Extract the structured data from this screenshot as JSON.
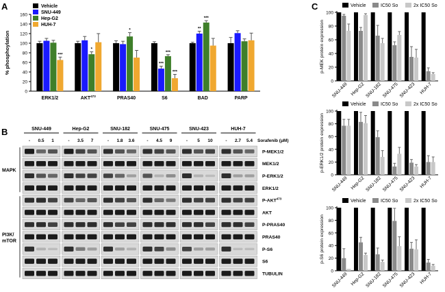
{
  "panels": {
    "a": "A",
    "b": "B",
    "c": "C"
  },
  "chart_data": [
    {
      "type": "bar",
      "title": "",
      "ylabel": "% phosphoylation",
      "ylim": [
        0,
        160
      ],
      "yticks": [
        0,
        20,
        40,
        60,
        80,
        100,
        120,
        140,
        160
      ],
      "categories": [
        "ERK1/2",
        "AKT473",
        "PRAS40",
        "S6",
        "BAD",
        "PARP"
      ],
      "category_display": [
        {
          "base": "ERK1/2",
          "sup": ""
        },
        {
          "base": "AKT",
          "sup": "473"
        },
        {
          "base": "PRAS40",
          "sup": ""
        },
        {
          "base": "S6",
          "sup": ""
        },
        {
          "base": "BAD",
          "sup": ""
        },
        {
          "base": "PARP",
          "sup": ""
        }
      ],
      "legend_position": "top-left",
      "series": [
        {
          "name": "Vehicle",
          "color": "#000000",
          "values": [
            100,
            100,
            100,
            100,
            100,
            100
          ],
          "errors": [
            4,
            4,
            5,
            3,
            2,
            12
          ]
        },
        {
          "name": "SNU-449",
          "color": "#1a1aff",
          "values": [
            105,
            106,
            98,
            47,
            120,
            121
          ],
          "errors": [
            5,
            8,
            6,
            5,
            5,
            5
          ]
        },
        {
          "name": "Hep-G2",
          "color": "#3f7f2a",
          "values": [
            101,
            77,
            114,
            73,
            143,
            104
          ],
          "errors": [
            5,
            5,
            8,
            3,
            4,
            5
          ]
        },
        {
          "name": "HUH-7",
          "color": "#f0a830",
          "values": [
            65,
            102,
            70,
            27,
            95,
            106
          ],
          "errors": [
            6,
            18,
            15,
            8,
            15,
            15
          ]
        }
      ],
      "significance": [
        {
          "category": "ERK1/2",
          "series": "HUH-7",
          "mark": "***"
        },
        {
          "category": "AKT473",
          "series": "Hep-G2",
          "mark": "*"
        },
        {
          "category": "PRAS40",
          "series": "Hep-G2",
          "mark": "*"
        },
        {
          "category": "S6",
          "series": "SNU-449",
          "mark": "***"
        },
        {
          "category": "S6",
          "series": "Hep-G2",
          "mark": "***"
        },
        {
          "category": "S6",
          "series": "HUH-7",
          "mark": "***"
        },
        {
          "category": "BAD",
          "series": "SNU-449",
          "mark": "**"
        },
        {
          "category": "BAD",
          "series": "Hep-G2",
          "mark": "***"
        }
      ]
    },
    {
      "type": "bar",
      "ylabel": "p-MEK protein expression",
      "ylim": [
        0,
        100
      ],
      "yticks": [
        0,
        20,
        40,
        60,
        80,
        100
      ],
      "categories": [
        "SNU-449",
        "Hep-G2",
        "SNU-182",
        "SNU-475",
        "SNU-423",
        "HUH-7"
      ],
      "legend_position": "top",
      "series": [
        {
          "name": "Vehicle",
          "color": "#000000",
          "values": [
            100,
            100,
            100,
            100,
            100,
            100
          ],
          "errors": [
            0,
            0,
            0,
            0,
            0,
            0
          ]
        },
        {
          "name": "IC50 So",
          "color": "#8a8a8a",
          "values": [
            95,
            73,
            66,
            52,
            35,
            14
          ],
          "errors": [
            2,
            5,
            15,
            5,
            15,
            5
          ]
        },
        {
          "name": "2x IC50 So",
          "color": "#c8c8c8",
          "values": [
            73,
            96,
            55,
            67,
            34,
            10
          ],
          "errors": [
            10,
            2,
            7,
            5,
            12,
            2
          ]
        }
      ]
    },
    {
      "type": "bar",
      "ylabel": "p-ERK1/2 protein expression",
      "ylim": [
        0,
        100
      ],
      "yticks": [
        0,
        20,
        40,
        60,
        80,
        100
      ],
      "categories": [
        "SNU-449",
        "Hep-G2",
        "SNU-182",
        "SNU-475",
        "SNU-423",
        "HUH-7"
      ],
      "legend_position": "top",
      "series": [
        {
          "name": "Vehicle",
          "color": "#000000",
          "values": [
            100,
            100,
            100,
            100,
            100,
            100
          ],
          "errors": [
            0,
            0,
            0,
            0,
            0,
            0
          ]
        },
        {
          "name": "IC50 So",
          "color": "#8a8a8a",
          "values": [
            77,
            83,
            59,
            13,
            19,
            20
          ],
          "errors": [
            10,
            15,
            10,
            5,
            5,
            10
          ]
        },
        {
          "name": "2x IC50 So",
          "color": "#c8c8c8",
          "values": [
            77,
            81,
            28,
            33,
            13,
            20
          ],
          "errors": [
            10,
            12,
            10,
            10,
            3,
            8
          ]
        }
      ]
    },
    {
      "type": "bar",
      "ylabel": "p-S6 protein expression",
      "ylim": [
        0,
        100
      ],
      "yticks": [
        0,
        20,
        40,
        60,
        80,
        100
      ],
      "categories": [
        "SNU-449",
        "Hep-G2",
        "SNU-182",
        "SNU-475",
        "SNU-423",
        "HUH-7"
      ],
      "legend_position": "top",
      "series": [
        {
          "name": "Vehicle",
          "color": "#000000",
          "values": [
            100,
            100,
            100,
            100,
            100,
            100
          ],
          "errors": [
            0,
            0,
            0,
            0,
            0,
            0
          ]
        },
        {
          "name": "IC50 So",
          "color": "#8a8a8a",
          "values": [
            20,
            45,
            26,
            79,
            35,
            13
          ],
          "errors": [
            15,
            8,
            10,
            20,
            10,
            5
          ]
        },
        {
          "name": "2x IC50 So",
          "color": "#c8c8c8",
          "values": [
            3,
            25,
            14,
            39,
            34,
            8
          ],
          "errors": [
            0,
            3,
            3,
            15,
            15,
            2
          ]
        }
      ]
    }
  ],
  "blot": {
    "dose_header": "Sorafenib (μM)",
    "cell_lines": [
      {
        "name": "SNU-449",
        "doses": [
          "-",
          "0.5",
          "1"
        ]
      },
      {
        "name": "Hep-G2",
        "doses": [
          "-",
          "3.5",
          "7"
        ]
      },
      {
        "name": "SNU-182",
        "doses": [
          "-",
          "1.8",
          "3.6"
        ]
      },
      {
        "name": "SNU-475",
        "doses": [
          "-",
          "4.5",
          "9"
        ]
      },
      {
        "name": "SNU-423",
        "doses": [
          "-",
          "5",
          "10"
        ]
      },
      {
        "name": "HUH-7",
        "doses": [
          "-",
          "2.7",
          "5.4"
        ]
      }
    ],
    "proteins": [
      {
        "base": "P-MEK1/2",
        "sup": ""
      },
      {
        "base": "MEK1/2",
        "sup": ""
      },
      {
        "base": "P-ERK1/2",
        "sup": ""
      },
      {
        "base": "ERK1/2",
        "sup": ""
      },
      {
        "base": "P-AKT",
        "sup": "473"
      },
      {
        "base": "AKT",
        "sup": ""
      },
      {
        "base": "P-PRAS40",
        "sup": ""
      },
      {
        "base": "PRAS40",
        "sup": ""
      },
      {
        "base": "P-S6",
        "sup": ""
      },
      {
        "base": "S6",
        "sup": ""
      },
      {
        "base": "TUBULIN",
        "sup": ""
      }
    ],
    "groups": [
      {
        "label_lines": [
          "MAPK"
        ]
      },
      {
        "label_lines": [
          "PI3K/",
          "mTOR"
        ]
      }
    ],
    "band_intensity": [
      [
        [
          1,
          0.6,
          0.7
        ],
        [
          1,
          0.8,
          0.7
        ],
        [
          0.9,
          0.7,
          0.6
        ],
        [
          0.9,
          0.8,
          0.7
        ],
        [
          0.9,
          0.7,
          0.8
        ],
        [
          0.9,
          0.7,
          0.6
        ]
      ],
      [
        [
          1,
          1,
          1
        ],
        [
          1,
          1,
          1
        ],
        [
          1,
          1,
          1
        ],
        [
          1,
          1,
          1
        ],
        [
          1,
          1,
          1
        ],
        [
          1,
          1,
          1
        ]
      ],
      [
        [
          0.9,
          0.7,
          0.6
        ],
        [
          0.9,
          0.8,
          0.8
        ],
        [
          0.8,
          0.6,
          0.3
        ],
        [
          0.7,
          0.2,
          0.4
        ],
        [
          0.9,
          0.2,
          0.1
        ],
        [
          0.9,
          0.3,
          0.3
        ]
      ],
      [
        [
          1,
          1,
          1
        ],
        [
          1,
          1,
          1
        ],
        [
          1,
          1,
          1
        ],
        [
          1,
          1,
          1
        ],
        [
          1,
          1,
          1
        ],
        [
          1,
          1,
          1
        ]
      ],
      [
        [
          0.9,
          0.9,
          0.8
        ],
        [
          0.8,
          0.6,
          0.7
        ],
        [
          0.9,
          0.8,
          0.7
        ],
        [
          0.9,
          0.6,
          0.5
        ],
        [
          0.9,
          0.8,
          0.8
        ],
        [
          0.9,
          0.8,
          0.8
        ]
      ],
      [
        [
          1,
          1,
          1
        ],
        [
          1,
          1,
          1
        ],
        [
          1,
          1,
          1
        ],
        [
          1,
          1,
          1
        ],
        [
          1,
          1,
          1
        ],
        [
          1,
          1,
          1
        ]
      ],
      [
        [
          0.9,
          0.9,
          0.8
        ],
        [
          0.9,
          0.9,
          0.9
        ],
        [
          0.9,
          0.8,
          0.8
        ],
        [
          0.9,
          0.9,
          0.9
        ],
        [
          0.9,
          0.9,
          0.8
        ],
        [
          0.9,
          0.9,
          0.8
        ]
      ],
      [
        [
          1,
          1,
          1
        ],
        [
          1,
          1,
          1
        ],
        [
          1,
          1,
          1
        ],
        [
          1,
          1,
          1
        ],
        [
          1,
          1,
          1
        ],
        [
          1,
          1,
          1
        ]
      ],
      [
        [
          0.9,
          0.2,
          0.1
        ],
        [
          0.9,
          0.5,
          0.3
        ],
        [
          0.9,
          0.3,
          0.2
        ],
        [
          0.9,
          0.8,
          0.4
        ],
        [
          0.8,
          0.3,
          0.3
        ],
        [
          0.9,
          0.1,
          0.1
        ]
      ],
      [
        [
          1,
          1,
          1
        ],
        [
          1,
          1,
          1
        ],
        [
          1,
          1,
          1
        ],
        [
          1,
          1,
          1
        ],
        [
          1,
          1,
          1
        ],
        [
          1,
          1,
          1
        ]
      ],
      [
        [
          1,
          1,
          1
        ],
        [
          1,
          1,
          1
        ],
        [
          1,
          1,
          1
        ],
        [
          1,
          1,
          1
        ],
        [
          1,
          1,
          1
        ],
        [
          1,
          1,
          1
        ]
      ]
    ]
  }
}
